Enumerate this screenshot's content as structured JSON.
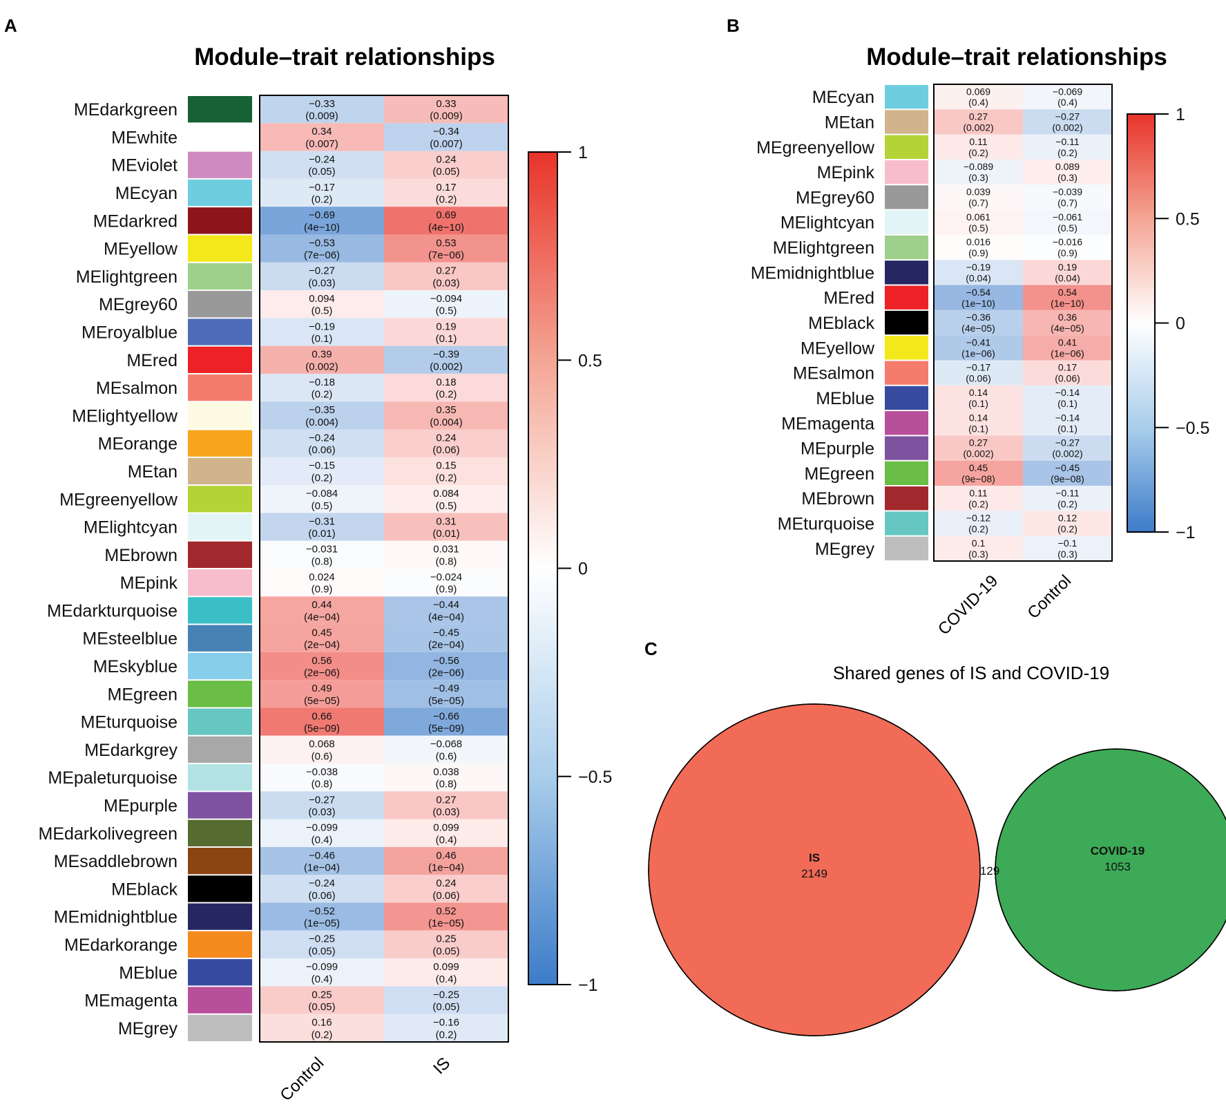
{
  "chart_data": [
    {
      "panel": "A",
      "type": "heatmap",
      "title": "Module–trait relationships",
      "columns": [
        "Control",
        "IS"
      ],
      "rows": [
        {
          "module": "MEdarkgreen",
          "color": "#166135",
          "values": [
            "−0.33",
            "0.33"
          ],
          "pvalues": [
            "(0.009)",
            "(0.009)"
          ],
          "r": -0.33
        },
        {
          "module": "MEwhite",
          "color": "#ffffff",
          "values": [
            "0.34",
            "−0.34"
          ],
          "pvalues": [
            "(0.007)",
            "(0.007)"
          ],
          "r": 0.34
        },
        {
          "module": "MEviolet",
          "color": "#cf8bbf",
          "values": [
            "−0.24",
            "0.24"
          ],
          "pvalues": [
            "(0.05)",
            "(0.05)"
          ],
          "r": -0.24
        },
        {
          "module": "MEcyan",
          "color": "#6fcde0",
          "values": [
            "−0.17",
            "0.17"
          ],
          "pvalues": [
            "(0.2)",
            "(0.2)"
          ],
          "r": -0.17
        },
        {
          "module": "MEdarkred",
          "color": "#8b1519",
          "values": [
            "−0.69",
            "0.69"
          ],
          "pvalues": [
            "(4e−10)",
            "(4e−10)"
          ],
          "r": -0.69
        },
        {
          "module": "MEyellow",
          "color": "#f3e81a",
          "values": [
            "−0.53",
            "0.53"
          ],
          "pvalues": [
            "(7e−06)",
            "(7e−06)"
          ],
          "r": -0.53
        },
        {
          "module": "MElightgreen",
          "color": "#9ed08b",
          "values": [
            "−0.27",
            "0.27"
          ],
          "pvalues": [
            "(0.03)",
            "(0.03)"
          ],
          "r": -0.27
        },
        {
          "module": "MEgrey60",
          "color": "#999999",
          "values": [
            "0.094",
            "−0.094"
          ],
          "pvalues": [
            "(0.5)",
            "(0.5)"
          ],
          "r": 0.094
        },
        {
          "module": "MEroyalblue",
          "color": "#4e6bb8",
          "values": [
            "−0.19",
            "0.19"
          ],
          "pvalues": [
            "(0.1)",
            "(0.1)"
          ],
          "r": -0.19
        },
        {
          "module": "MEred",
          "color": "#ec2227",
          "values": [
            "0.39",
            "−0.39"
          ],
          "pvalues": [
            "(0.002)",
            "(0.002)"
          ],
          "r": 0.39
        },
        {
          "module": "MEsalmon",
          "color": "#f47c6c",
          "values": [
            "−0.18",
            "0.18"
          ],
          "pvalues": [
            "(0.2)",
            "(0.2)"
          ],
          "r": -0.18
        },
        {
          "module": "MElightyellow",
          "color": "#fdfbe3",
          "values": [
            "−0.35",
            "0.35"
          ],
          "pvalues": [
            "(0.004)",
            "(0.004)"
          ],
          "r": -0.35
        },
        {
          "module": "MEorange",
          "color": "#f8a51d",
          "values": [
            "−0.24",
            "0.24"
          ],
          "pvalues": [
            "(0.06)",
            "(0.06)"
          ],
          "r": -0.24
        },
        {
          "module": "MEtan",
          "color": "#d2b48c",
          "values": [
            "−0.15",
            "0.15"
          ],
          "pvalues": [
            "(0.2)",
            "(0.2)"
          ],
          "r": -0.15
        },
        {
          "module": "MEgreenyellow",
          "color": "#b4d336",
          "values": [
            "−0.084",
            "0.084"
          ],
          "pvalues": [
            "(0.5)",
            "(0.5)"
          ],
          "r": -0.084
        },
        {
          "module": "MElightcyan",
          "color": "#e3f4f6",
          "values": [
            "−0.31",
            "0.31"
          ],
          "pvalues": [
            "(0.01)",
            "(0.01)"
          ],
          "r": -0.31
        },
        {
          "module": "MEbrown",
          "color": "#a1282c",
          "values": [
            "−0.031",
            "0.031"
          ],
          "pvalues": [
            "(0.8)",
            "(0.8)"
          ],
          "r": -0.031
        },
        {
          "module": "MEpink",
          "color": "#f8bdcc",
          "values": [
            "0.024",
            "−0.024"
          ],
          "pvalues": [
            "(0.9)",
            "(0.9)"
          ],
          "r": 0.024
        },
        {
          "module": "MEdarkturquoise",
          "color": "#3bbfc6",
          "values": [
            "0.44",
            "−0.44"
          ],
          "pvalues": [
            "(4e−04)",
            "(4e−04)"
          ],
          "r": 0.44
        },
        {
          "module": "MEsteelblue",
          "color": "#4682b4",
          "values": [
            "0.45",
            "−0.45"
          ],
          "pvalues": [
            "(2e−04)",
            "(2e−04)"
          ],
          "r": 0.45
        },
        {
          "module": "MEskyblue",
          "color": "#87ceeb",
          "values": [
            "0.56",
            "−0.56"
          ],
          "pvalues": [
            "(2e−06)",
            "(2e−06)"
          ],
          "r": 0.56
        },
        {
          "module": "MEgreen",
          "color": "#6abd45",
          "values": [
            "0.49",
            "−0.49"
          ],
          "pvalues": [
            "(5e−05)",
            "(5e−05)"
          ],
          "r": 0.49
        },
        {
          "module": "MEturquoise",
          "color": "#66c7c2",
          "values": [
            "0.66",
            "−0.66"
          ],
          "pvalues": [
            "(5e−09)",
            "(5e−09)"
          ],
          "r": 0.66
        },
        {
          "module": "MEdarkgrey",
          "color": "#a8a8a8",
          "values": [
            "0.068",
            "−0.068"
          ],
          "pvalues": [
            "(0.6)",
            "(0.6)"
          ],
          "r": 0.068
        },
        {
          "module": "MEpaleturquoise",
          "color": "#b2e2e4",
          "values": [
            "−0.038",
            "0.038"
          ],
          "pvalues": [
            "(0.8)",
            "(0.8)"
          ],
          "r": -0.038
        },
        {
          "module": "MEpurple",
          "color": "#7f52a0",
          "values": [
            "−0.27",
            "0.27"
          ],
          "pvalues": [
            "(0.03)",
            "(0.03)"
          ],
          "r": -0.27
        },
        {
          "module": "MEdarkolivegreen",
          "color": "#556b2f",
          "values": [
            "−0.099",
            "0.099"
          ],
          "pvalues": [
            "(0.4)",
            "(0.4)"
          ],
          "r": -0.099
        },
        {
          "module": "MEsaddlebrown",
          "color": "#8b4513",
          "values": [
            "−0.46",
            "0.46"
          ],
          "pvalues": [
            "(1e−04)",
            "(1e−04)"
          ],
          "r": -0.46
        },
        {
          "module": "MEblack",
          "color": "#000000",
          "values": [
            "−0.24",
            "0.24"
          ],
          "pvalues": [
            "(0.06)",
            "(0.06)"
          ],
          "r": -0.24
        },
        {
          "module": "MEmidnightblue",
          "color": "#262761",
          "values": [
            "−0.52",
            "0.52"
          ],
          "pvalues": [
            "(1e−05)",
            "(1e−05)"
          ],
          "r": -0.52
        },
        {
          "module": "MEdarkorange",
          "color": "#f58a1f",
          "values": [
            "−0.25",
            "0.25"
          ],
          "pvalues": [
            "(0.05)",
            "(0.05)"
          ],
          "r": -0.25
        },
        {
          "module": "MEblue",
          "color": "#364b9f",
          "values": [
            "−0.099",
            "0.099"
          ],
          "pvalues": [
            "(0.4)",
            "(0.4)"
          ],
          "r": -0.099
        },
        {
          "module": "MEmagenta",
          "color": "#b84f9a",
          "values": [
            "0.25",
            "−0.25"
          ],
          "pvalues": [
            "(0.05)",
            "(0.05)"
          ],
          "r": 0.25
        },
        {
          "module": "MEgrey",
          "color": "#bebebe",
          "values": [
            "0.16",
            "−0.16"
          ],
          "pvalues": [
            "(0.2)",
            "(0.2)"
          ],
          "r": 0.16
        }
      ],
      "colorbar": {
        "ticks": [
          "1",
          "0.5",
          "0",
          "−0.5",
          "−1"
        ],
        "tick_values": [
          1,
          0.5,
          0,
          -0.5,
          -1
        ],
        "range": [
          -1,
          1
        ]
      }
    },
    {
      "panel": "B",
      "type": "heatmap",
      "title": "Module–trait relationships",
      "columns": [
        "COVID-19",
        "Control"
      ],
      "rows": [
        {
          "module": "MEcyan",
          "color": "#6fcde0",
          "values": [
            "0.069",
            "−0.069"
          ],
          "pvalues": [
            "(0.4)",
            "(0.4)"
          ],
          "r": 0.069
        },
        {
          "module": "MEtan",
          "color": "#d2b48c",
          "values": [
            "0.27",
            "−0.27"
          ],
          "pvalues": [
            "(0.002)",
            "(0.002)"
          ],
          "r": 0.27
        },
        {
          "module": "MEgreenyellow",
          "color": "#b4d336",
          "values": [
            "0.11",
            "−0.11"
          ],
          "pvalues": [
            "(0.2)",
            "(0.2)"
          ],
          "r": 0.11
        },
        {
          "module": "MEpink",
          "color": "#f8bdcc",
          "values": [
            "−0.089",
            "0.089"
          ],
          "pvalues": [
            "(0.3)",
            "(0.3)"
          ],
          "r": -0.089
        },
        {
          "module": "MEgrey60",
          "color": "#999999",
          "values": [
            "0.039",
            "−0.039"
          ],
          "pvalues": [
            "(0.7)",
            "(0.7)"
          ],
          "r": 0.039
        },
        {
          "module": "MElightcyan",
          "color": "#e3f4f6",
          "values": [
            "0.061",
            "−0.061"
          ],
          "pvalues": [
            "(0.5)",
            "(0.5)"
          ],
          "r": 0.061
        },
        {
          "module": "MElightgreen",
          "color": "#9ed08b",
          "values": [
            "0.016",
            "−0.016"
          ],
          "pvalues": [
            "(0.9)",
            "(0.9)"
          ],
          "r": 0.016
        },
        {
          "module": "MEmidnightblue",
          "color": "#262761",
          "values": [
            "−0.19",
            "0.19"
          ],
          "pvalues": [
            "(0.04)",
            "(0.04)"
          ],
          "r": -0.19
        },
        {
          "module": "MEred",
          "color": "#ec2227",
          "values": [
            "−0.54",
            "0.54"
          ],
          "pvalues": [
            "(1e−10)",
            "(1e−10)"
          ],
          "r": -0.54
        },
        {
          "module": "MEblack",
          "color": "#000000",
          "values": [
            "−0.36",
            "0.36"
          ],
          "pvalues": [
            "(4e−05)",
            "(4e−05)"
          ],
          "r": -0.36
        },
        {
          "module": "MEyellow",
          "color": "#f3e81a",
          "values": [
            "−0.41",
            "0.41"
          ],
          "pvalues": [
            "(1e−06)",
            "(1e−06)"
          ],
          "r": -0.41
        },
        {
          "module": "MEsalmon",
          "color": "#f47c6c",
          "values": [
            "−0.17",
            "0.17"
          ],
          "pvalues": [
            "(0.06)",
            "(0.06)"
          ],
          "r": -0.17
        },
        {
          "module": "MEblue",
          "color": "#364b9f",
          "values": [
            "0.14",
            "−0.14"
          ],
          "pvalues": [
            "(0.1)",
            "(0.1)"
          ],
          "r": 0.14
        },
        {
          "module": "MEmagenta",
          "color": "#b84f9a",
          "values": [
            "0.14",
            "−0.14"
          ],
          "pvalues": [
            "(0.1)",
            "(0.1)"
          ],
          "r": 0.14
        },
        {
          "module": "MEpurple",
          "color": "#7f52a0",
          "values": [
            "0.27",
            "−0.27"
          ],
          "pvalues": [
            "(0.002)",
            "(0.002)"
          ],
          "r": 0.27
        },
        {
          "module": "MEgreen",
          "color": "#6abd45",
          "values": [
            "0.45",
            "−0.45"
          ],
          "pvalues": [
            "(9e−08)",
            "(9e−08)"
          ],
          "r": 0.45
        },
        {
          "module": "MEbrown",
          "color": "#a1282c",
          "values": [
            "0.11",
            "−0.11"
          ],
          "pvalues": [
            "(0.2)",
            "(0.2)"
          ],
          "r": 0.11
        },
        {
          "module": "MEturquoise",
          "color": "#66c7c2",
          "values": [
            "−0.12",
            "0.12"
          ],
          "pvalues": [
            "(0.2)",
            "(0.2)"
          ],
          "r": -0.12
        },
        {
          "module": "MEgrey",
          "color": "#bebebe",
          "values": [
            "0.1",
            "−0.1"
          ],
          "pvalues": [
            "(0.3)",
            "(0.3)"
          ],
          "r": 0.1
        }
      ],
      "colorbar": {
        "ticks": [
          "1",
          "0.5",
          "0",
          "−0.5",
          "−1"
        ],
        "tick_values": [
          1,
          0.5,
          0,
          -0.5,
          -1
        ],
        "range": [
          -1,
          1
        ]
      }
    },
    {
      "panel": "C",
      "type": "venn",
      "title": "Shared genes of IS and COVID-19",
      "sets": [
        {
          "name": "IS",
          "count": "2149",
          "color": "#f26b57"
        },
        {
          "name": "COVID-19",
          "count": "1053",
          "color": "#3daa57"
        }
      ],
      "intersection": {
        "count": "129",
        "color": "#f4b7ad"
      }
    }
  ],
  "panel_labels": [
    "A",
    "B",
    "C"
  ],
  "colors": {
    "neg": "#3d7cc9",
    "mid": "#ffffff",
    "pos": "#e8342a"
  }
}
